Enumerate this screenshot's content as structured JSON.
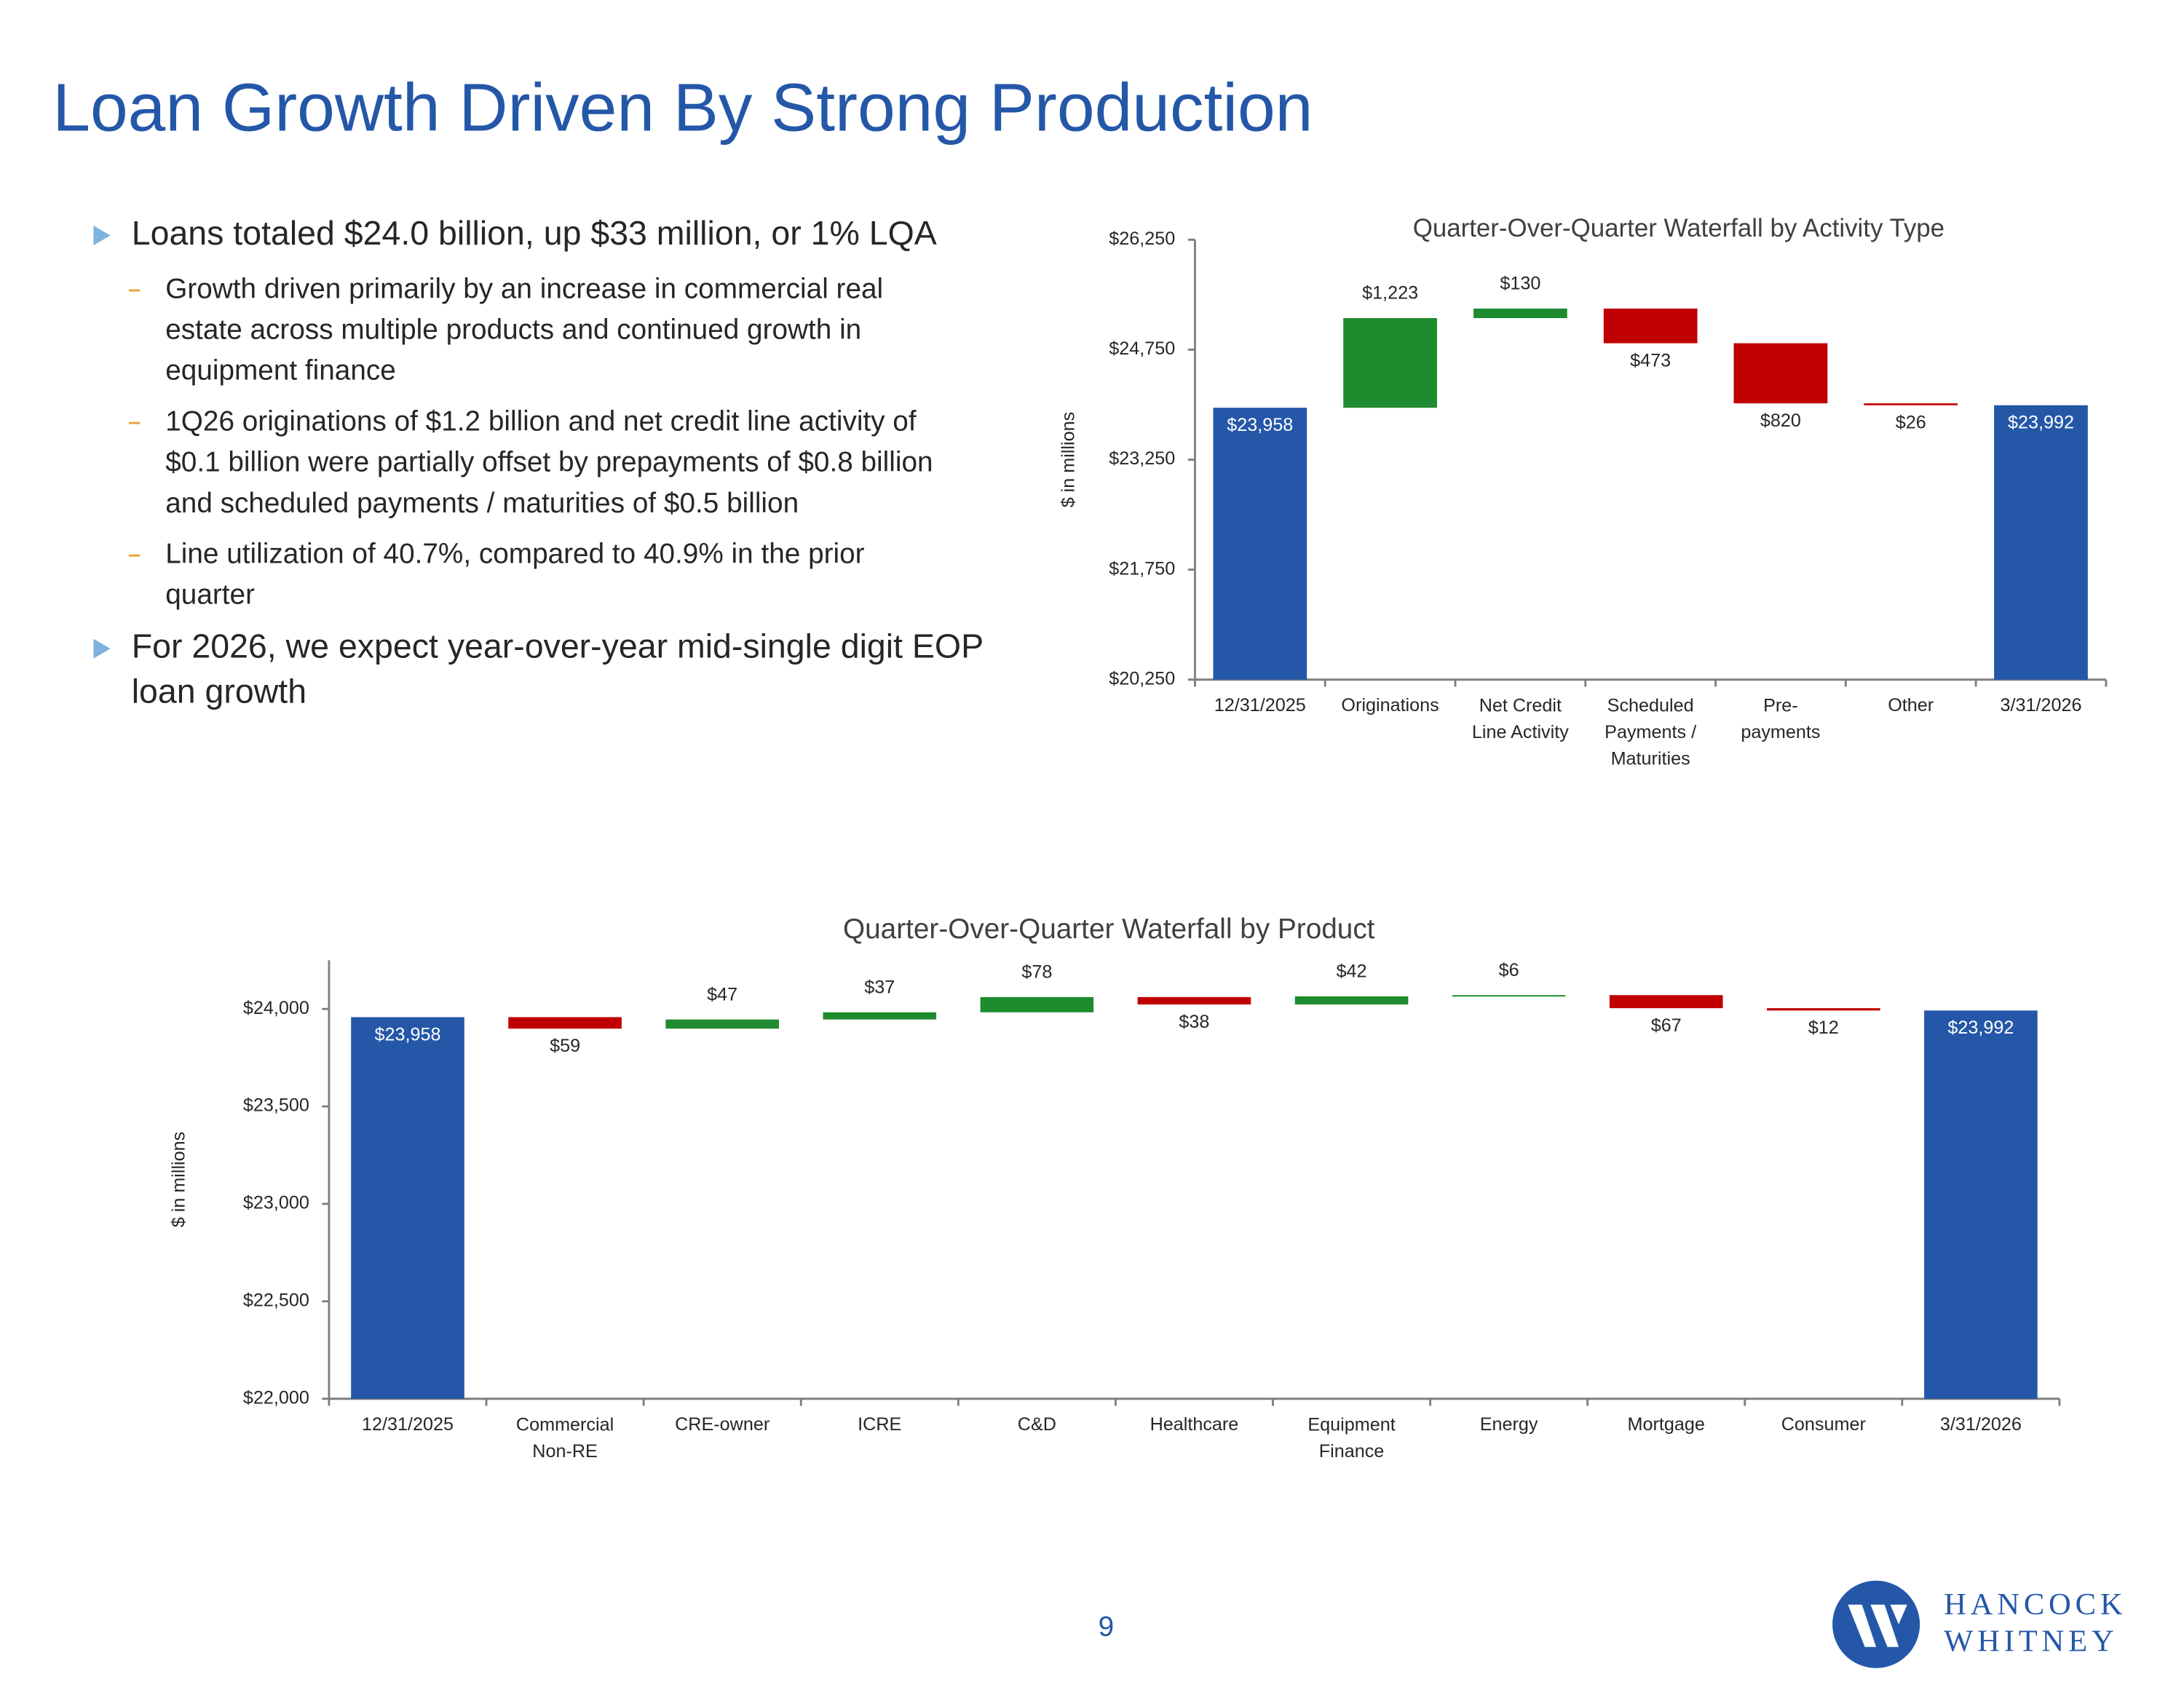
{
  "header": {
    "title": "Loan Growth Driven By Strong Production"
  },
  "bullets": [
    {
      "text": [
        "Loans totaled $24.0 billion, up $33 million, or 1% LQA"
      ],
      "subs": [
        [
          "Growth driven primarily by an increase in commercial real",
          "estate across multiple products and continued growth in",
          "equipment finance"
        ],
        [
          "1Q26 originations of $1.2 billion and net credit line activity of",
          "$0.1 billion were partially offset by prepayments of $0.8 billion",
          "and scheduled payments / maturities of $0.5 billion"
        ],
        [
          "Line utilization of 40.7%, compared to 40.9% in the prior",
          "quarter"
        ]
      ]
    },
    {
      "text": [
        "For 2026, we expect year-over-year mid-single digit EOP",
        "loan growth"
      ],
      "subs": []
    }
  ],
  "chart_data": [
    {
      "type": "waterfall",
      "title": "Quarter-Over-Quarter Waterfall by Activity Type",
      "ylabel": "$ in millions",
      "categories": [
        "12/31/2025",
        "Originations",
        "Net Credit\nLine Activity",
        "Scheduled\nPayments /\nMaturities",
        "Pre-\npayments",
        "Other",
        "3/31/2026"
      ],
      "values": [
        23958,
        1223,
        130,
        -473,
        -820,
        -26,
        23992
      ],
      "value_labels": [
        "$23,958",
        "$1,223",
        "$130",
        "$473",
        "$820",
        "$26",
        "$23,992"
      ],
      "ylim": [
        20250,
        26250
      ],
      "yticks": [
        {
          "value": 20250,
          "label": "$20,250"
        },
        {
          "value": 21750,
          "label": "$21,750"
        },
        {
          "value": 23250,
          "label": "$23,250"
        },
        {
          "value": 24750,
          "label": "$24,750"
        },
        {
          "value": 26250,
          "label": "$26,250"
        }
      ],
      "colors": {
        "total": "#2457a8",
        "increase": "#1e8c2e",
        "decrease": "#c00000"
      }
    },
    {
      "type": "waterfall",
      "title": "Quarter-Over-Quarter Waterfall by Product",
      "ylabel": "$ in millions",
      "categories": [
        "12/31/2025",
        "Commercial\nNon-RE",
        "CRE-owner",
        "ICRE",
        "C&D",
        "Healthcare",
        "Equipment\nFinance",
        "Energy",
        "Mortgage",
        "Consumer",
        "3/31/2026"
      ],
      "values": [
        23958,
        -59,
        47,
        37,
        78,
        -38,
        42,
        6,
        -67,
        -12,
        23992
      ],
      "value_labels": [
        "$23,958",
        "$59",
        "$47",
        "$37",
        "$78",
        "$38",
        "$42",
        "$6",
        "$67",
        "$12",
        "$23,992"
      ],
      "ylim": [
        22000,
        24250
      ],
      "yticks": [
        {
          "value": 22000,
          "label": "$22,000"
        },
        {
          "value": 22500,
          "label": "$22,500"
        },
        {
          "value": 23000,
          "label": "$23,000"
        },
        {
          "value": 23500,
          "label": "$23,500"
        },
        {
          "value": 24000,
          "label": "$24,000"
        }
      ],
      "colors": {
        "total": "#2457a8",
        "increase": "#1e8c2e",
        "decrease": "#c00000"
      }
    }
  ],
  "page_number": 9,
  "logo": {
    "line1": "HANCOCK",
    "line2": "WHITNEY"
  }
}
